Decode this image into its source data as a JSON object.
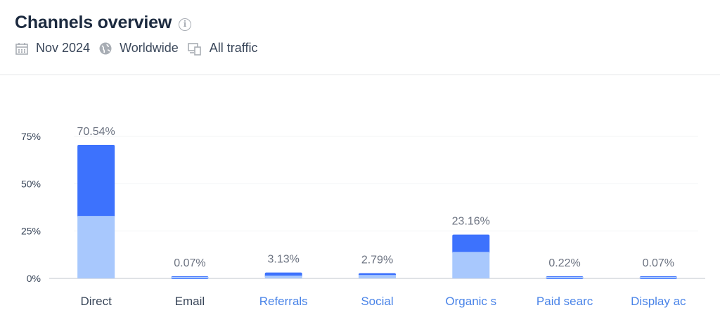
{
  "header": {
    "title": "Channels overview",
    "info_icon": "info-icon",
    "filters": [
      {
        "icon": "calendar-icon",
        "label": "Nov 2024"
      },
      {
        "icon": "globe-icon",
        "label": "Worldwide"
      },
      {
        "icon": "devices-icon",
        "label": "All traffic"
      }
    ]
  },
  "colors": {
    "dark": "#3d72fd",
    "light": "#a8c8fd",
    "link": "#4a84e8",
    "text": "#3a475a"
  },
  "chart_data": {
    "type": "bar",
    "stacked": true,
    "categories": [
      "Direct",
      "Email",
      "Referrals",
      "Social",
      "Organic s",
      "Paid searc",
      "Display ac"
    ],
    "category_is_link": [
      false,
      false,
      true,
      true,
      true,
      true,
      true
    ],
    "values": [
      70.54,
      0.07,
      3.13,
      2.79,
      23.16,
      0.22,
      0.07
    ],
    "data_labels": [
      "70.54%",
      "0.07%",
      "3.13%",
      "2.79%",
      "23.16%",
      "0.22%",
      "0.07%"
    ],
    "segments_light_estimate": [
      33.0,
      0.07,
      1.5,
      1.8,
      14.0,
      0.22,
      0.07
    ],
    "yticks": [
      "0%",
      "25%",
      "50%",
      "75%"
    ],
    "ylim": [
      0,
      75
    ],
    "grid": true,
    "title": "",
    "xlabel": "",
    "ylabel": ""
  }
}
